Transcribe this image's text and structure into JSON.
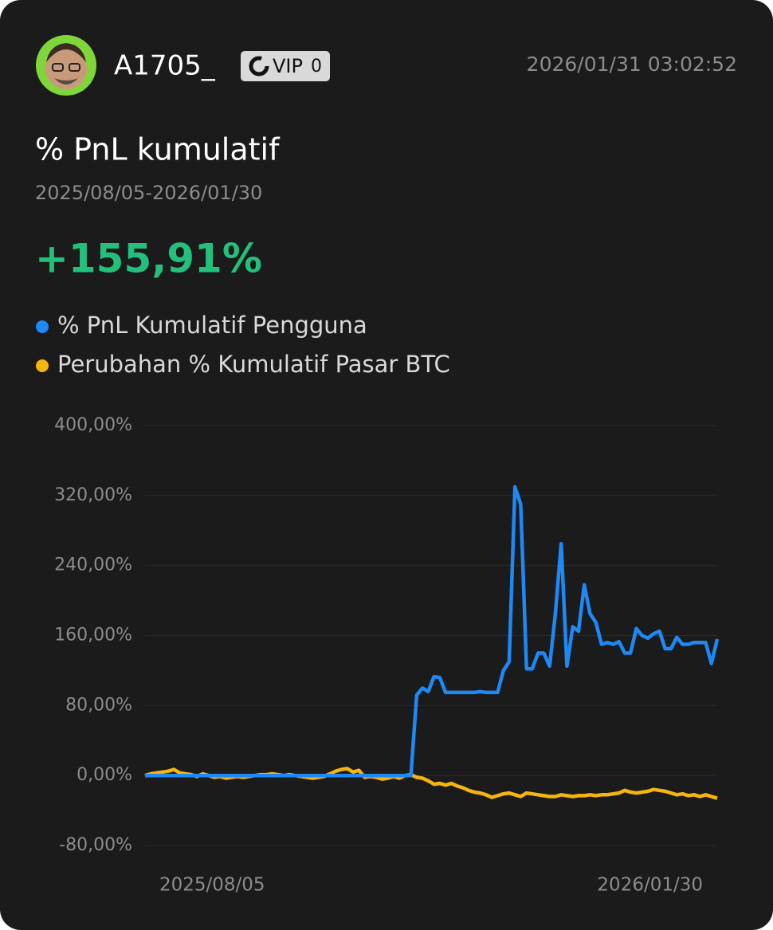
{
  "header": {
    "username": "A1705_",
    "badge": "VIP",
    "badge_level": "0",
    "timestamp": "2026/01/31 03:02:52"
  },
  "summary": {
    "title": "% PnL kumulatif",
    "period": "2025/08/05-2026/01/30",
    "value": "+155,91%"
  },
  "chart_data": {
    "type": "line",
    "categories": [
      "2025/08/05",
      null,
      null,
      null,
      null,
      null,
      null,
      null,
      null,
      null,
      null,
      null,
      null,
      null,
      null,
      null,
      null,
      null,
      null,
      null,
      null,
      null,
      null,
      null,
      null,
      null,
      null,
      null,
      null,
      null,
      null,
      null,
      null,
      null,
      null,
      null,
      null,
      null,
      null,
      null,
      null,
      null,
      null,
      null,
      null,
      null,
      null,
      null,
      null,
      null,
      null,
      null,
      null,
      null,
      null,
      null,
      null,
      null,
      null,
      null,
      null,
      null,
      null,
      null,
      null,
      null,
      null,
      null,
      null,
      null,
      null,
      null,
      null,
      null,
      null,
      null,
      null,
      null,
      null,
      null,
      null,
      null,
      null,
      null,
      null,
      null,
      null,
      null,
      null,
      null,
      null,
      null,
      null,
      null,
      null,
      null,
      null,
      null,
      null,
      "2026/01/30"
    ],
    "series": [
      {
        "name": "% PnL Kumulatif Pengguna",
        "color": "#1e88f5",
        "values": [
          0,
          0,
          0,
          0,
          0,
          0,
          0,
          0,
          0,
          0,
          0,
          0,
          0,
          0,
          0,
          0,
          0,
          0,
          0,
          0,
          0,
          0,
          0,
          0,
          0,
          0,
          0,
          0,
          0,
          0,
          0,
          0,
          0,
          0,
          0,
          0,
          0,
          0,
          0,
          0,
          0,
          0,
          0,
          0,
          0,
          0,
          0,
          92,
          100,
          96,
          113,
          112,
          95,
          95,
          95,
          95,
          95,
          95,
          96,
          95,
          95,
          95,
          120,
          130,
          330,
          310,
          122,
          122,
          140,
          140,
          125,
          185,
          265,
          125,
          170,
          165,
          218,
          185,
          175,
          150,
          152,
          150,
          153,
          140,
          140,
          168,
          160,
          157,
          162,
          165,
          145,
          145,
          158,
          150,
          150,
          152,
          152,
          152,
          128,
          155.91
        ]
      },
      {
        "name": "Perubahan % Kumulatif Pasar BTC",
        "color": "#f5b50f",
        "values": [
          0,
          2,
          3,
          4,
          5,
          7,
          3,
          2,
          1,
          -1,
          2,
          0,
          -2,
          -1,
          -3,
          -2,
          -1,
          -2,
          -1,
          0,
          1,
          1,
          2,
          1,
          0,
          1,
          0,
          -1,
          -2,
          -3,
          -2,
          -1,
          2,
          5,
          7,
          8,
          4,
          6,
          -2,
          -1,
          -2,
          -4,
          -3,
          -1,
          -3,
          0,
          1,
          -2,
          -3,
          -6,
          -10,
          -9,
          -11,
          -9,
          -12,
          -14,
          -17,
          -19,
          -20,
          -22,
          -25,
          -23,
          -21,
          -20,
          -22,
          -24,
          -20,
          -21,
          -22,
          -23,
          -24,
          -24,
          -22,
          -23,
          -24,
          -23,
          -23,
          -22,
          -23,
          -22,
          -22,
          -21,
          -20,
          -17,
          -19,
          -20,
          -19,
          -18,
          -16,
          -17,
          -18,
          -20,
          -22,
          -21,
          -23,
          -22,
          -24,
          -22,
          -24,
          -26
        ]
      }
    ],
    "ylim": [
      -80,
      400
    ],
    "yticks": [
      {
        "value": -80,
        "label": "-80,00%"
      },
      {
        "value": 0,
        "label": "0,00%"
      },
      {
        "value": 80,
        "label": "80,00%"
      },
      {
        "value": 160,
        "label": "160,00%"
      },
      {
        "value": 240,
        "label": "240,00%"
      },
      {
        "value": 320,
        "label": "320,00%"
      },
      {
        "value": 400,
        "label": "400,00%"
      }
    ],
    "grid": true
  }
}
